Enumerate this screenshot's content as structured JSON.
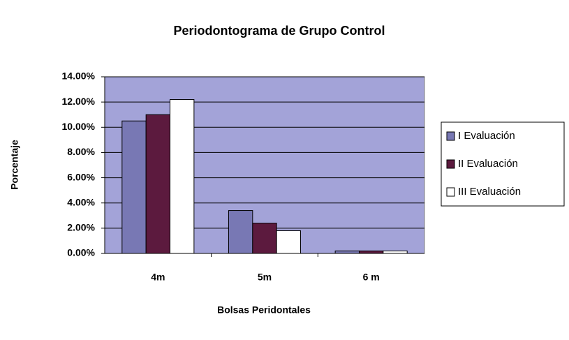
{
  "chart_data": {
    "type": "bar",
    "title": "Periodontograma de Grupo  Control",
    "x_label": "Bolsas Peridontales",
    "y_label": "Porcentaje",
    "categories": [
      "4m",
      "5m",
      "6 m"
    ],
    "series": [
      {
        "name": "I Evaluación",
        "color": "#7878b4",
        "values": [
          10.5,
          3.4,
          0.2
        ]
      },
      {
        "name": "II Evaluación",
        "color": "#5c1a3e",
        "values": [
          11.0,
          2.4,
          0.2
        ]
      },
      {
        "name": "III Evaluación",
        "color": "#ffffff",
        "values": [
          12.2,
          1.8,
          0.2
        ]
      }
    ],
    "ylim": [
      0,
      14
    ],
    "yticks": [
      {
        "value": 0,
        "label": "0.00%"
      },
      {
        "value": 2,
        "label": "2.00%"
      },
      {
        "value": 4,
        "label": "4.00%"
      },
      {
        "value": 6,
        "label": "6.00%"
      },
      {
        "value": 8,
        "label": "8.00%"
      },
      {
        "value": 10,
        "label": "10.00%"
      },
      {
        "value": 12,
        "label": "12.00%"
      },
      {
        "value": 14,
        "label": "14.00%"
      }
    ],
    "grid": true,
    "plot_background": "#a3a3d8",
    "legend": "right"
  }
}
